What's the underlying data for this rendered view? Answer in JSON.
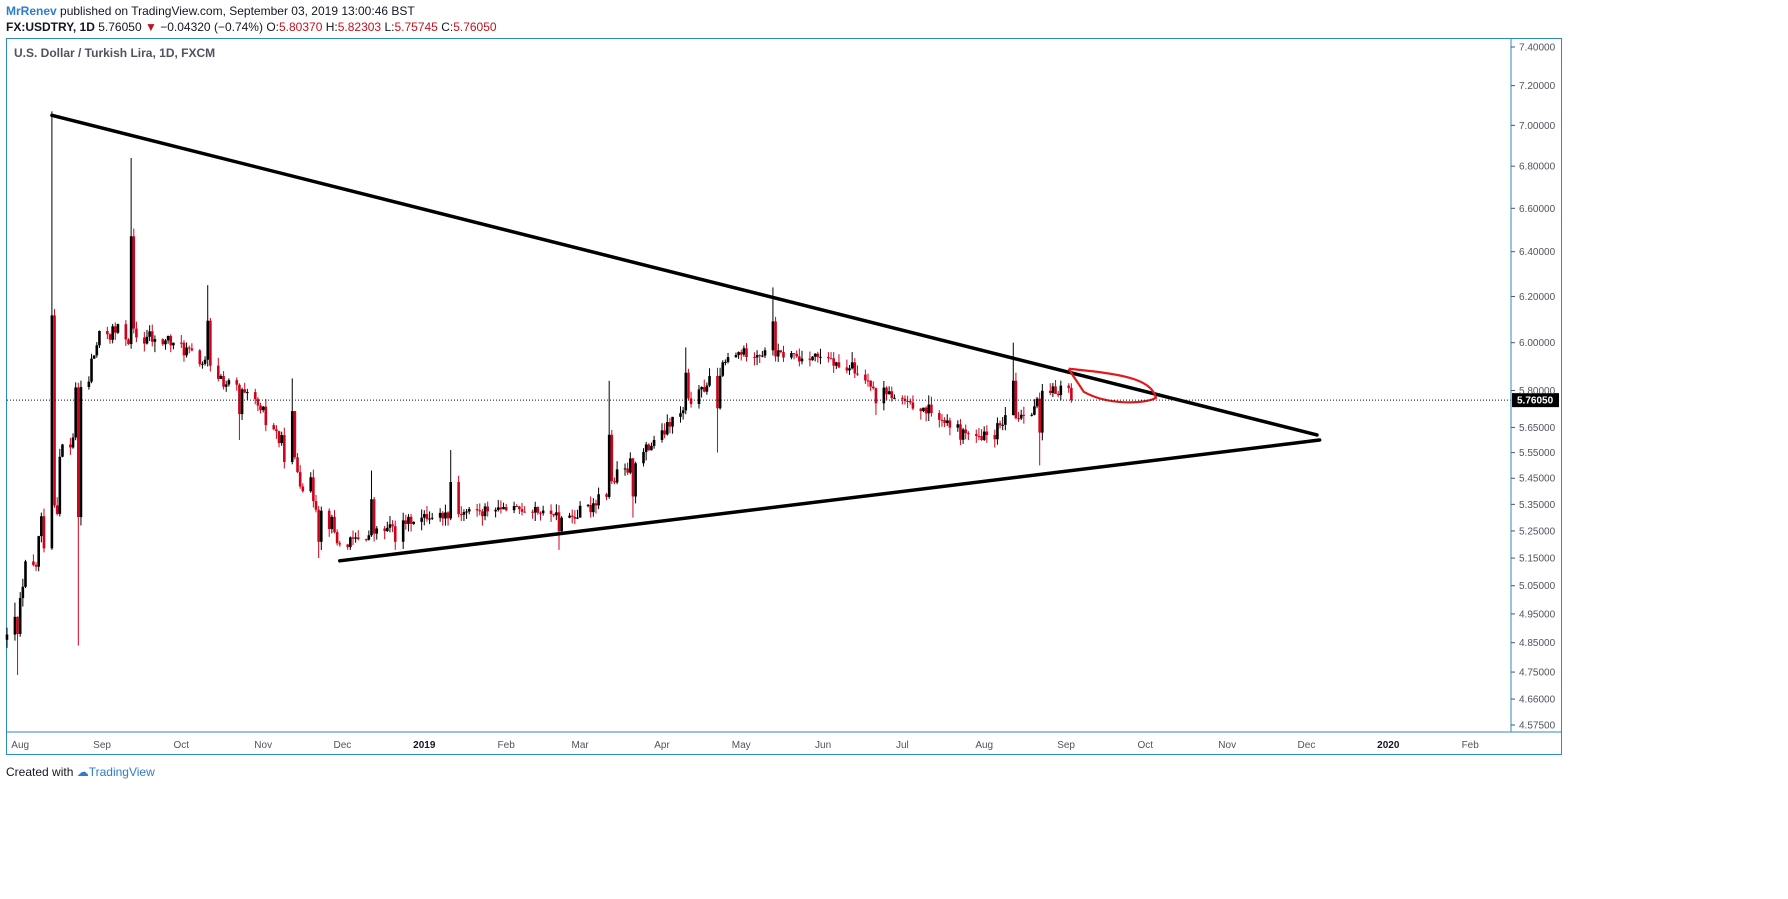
{
  "header": {
    "author": "MrRenev",
    "published_text": "published on TradingView.com, September 03, 2019 13:00:46 BST",
    "symbol": "FX:USDTRY, 1D",
    "last": "5.76050",
    "change": "−0.04320 (−0.74%)",
    "open_label": "O:",
    "open": "5.80370",
    "high_label": "H:",
    "high": "5.82303",
    "low_label": "L:",
    "low": "5.75745",
    "close_label": "C:",
    "close": "5.76050"
  },
  "footer": {
    "created_with": "Created with",
    "brand": "TradingView"
  },
  "chart_data": {
    "type": "candlestick",
    "title": "U.S. Dollar / Turkish Lira, 1D, FXCM",
    "price_scale": "log",
    "y_ticks": [
      "7.40000",
      "7.20000",
      "7.00000",
      "6.80000",
      "6.60000",
      "6.40000",
      "6.20000",
      "6.00000",
      "5.80000",
      "5.65000",
      "5.55000",
      "5.45000",
      "5.35000",
      "5.25000",
      "5.15000",
      "5.05000",
      "4.95000",
      "4.85000",
      "4.75000",
      "4.66000",
      "4.57500"
    ],
    "x_ticks": [
      "Aug",
      "Sep",
      "Oct",
      "Nov",
      "Dec",
      "2019",
      "Feb",
      "Mar",
      "Apr",
      "May",
      "Jun",
      "Jul",
      "Aug",
      "Sep",
      "Oct",
      "Nov",
      "Dec",
      "2020",
      "Feb"
    ],
    "bold_x_ticks": [
      "2019",
      "2020"
    ],
    "current_price": 5.7605,
    "current_price_label": "5.76050",
    "colors": {
      "up": "#000000",
      "down": "#d0021b",
      "trendline": "#000000",
      "annotation": "#e31a1c",
      "axis_border": "#2e8bc0"
    },
    "monthly_candles": [
      {
        "month": "2018-07",
        "open": 4.86,
        "high": 4.99,
        "low": 4.74,
        "close": 4.88
      },
      {
        "month": "2018-08",
        "open": 4.88,
        "high": 7.07,
        "low": 4.84,
        "close": 6.05
      },
      {
        "month": "2018-09",
        "open": 6.05,
        "high": 6.84,
        "low": 5.96,
        "close": 6.0
      },
      {
        "month": "2018-10",
        "open": 6.0,
        "high": 6.25,
        "low": 5.6,
        "close": 5.72
      },
      {
        "month": "2018-11",
        "open": 5.72,
        "high": 5.85,
        "low": 5.15,
        "close": 5.2
      },
      {
        "month": "2018-12",
        "open": 5.2,
        "high": 5.48,
        "low": 5.18,
        "close": 5.3
      },
      {
        "month": "2019-01",
        "open": 5.3,
        "high": 5.56,
        "low": 5.27,
        "close": 5.34
      },
      {
        "month": "2019-02",
        "open": 5.34,
        "high": 5.36,
        "low": 5.18,
        "close": 5.3
      },
      {
        "month": "2019-03",
        "open": 5.3,
        "high": 5.84,
        "low": 5.3,
        "close": 5.6
      },
      {
        "month": "2019-04",
        "open": 5.6,
        "high": 5.98,
        "low": 5.55,
        "close": 5.96
      },
      {
        "month": "2019-05",
        "open": 5.96,
        "high": 6.24,
        "low": 5.9,
        "close": 5.94
      },
      {
        "month": "2019-06",
        "open": 5.94,
        "high": 5.96,
        "low": 5.7,
        "close": 5.77
      },
      {
        "month": "2019-07",
        "open": 5.77,
        "high": 5.78,
        "low": 5.58,
        "close": 5.6
      },
      {
        "month": "2019-08",
        "open": 5.6,
        "high": 6.0,
        "low": 5.5,
        "close": 5.82
      },
      {
        "month": "2019-09",
        "open": 5.82,
        "high": 5.83,
        "low": 5.75,
        "close": 5.76
      }
    ],
    "drawings": [
      {
        "kind": "trendline",
        "from": {
          "date": "2018-08-13",
          "price": 7.05
        },
        "to": {
          "date": "2019-12-05",
          "price": 5.62
        }
      },
      {
        "kind": "trendline",
        "from": {
          "date": "2018-11-30",
          "price": 5.14
        },
        "to": {
          "date": "2019-12-06",
          "price": 5.6
        }
      },
      {
        "kind": "annotation_loop",
        "from": {
          "date": "2019-09-02",
          "price": 5.89
        },
        "to": {
          "date": "2019-10-05",
          "price": 5.77
        }
      }
    ]
  }
}
